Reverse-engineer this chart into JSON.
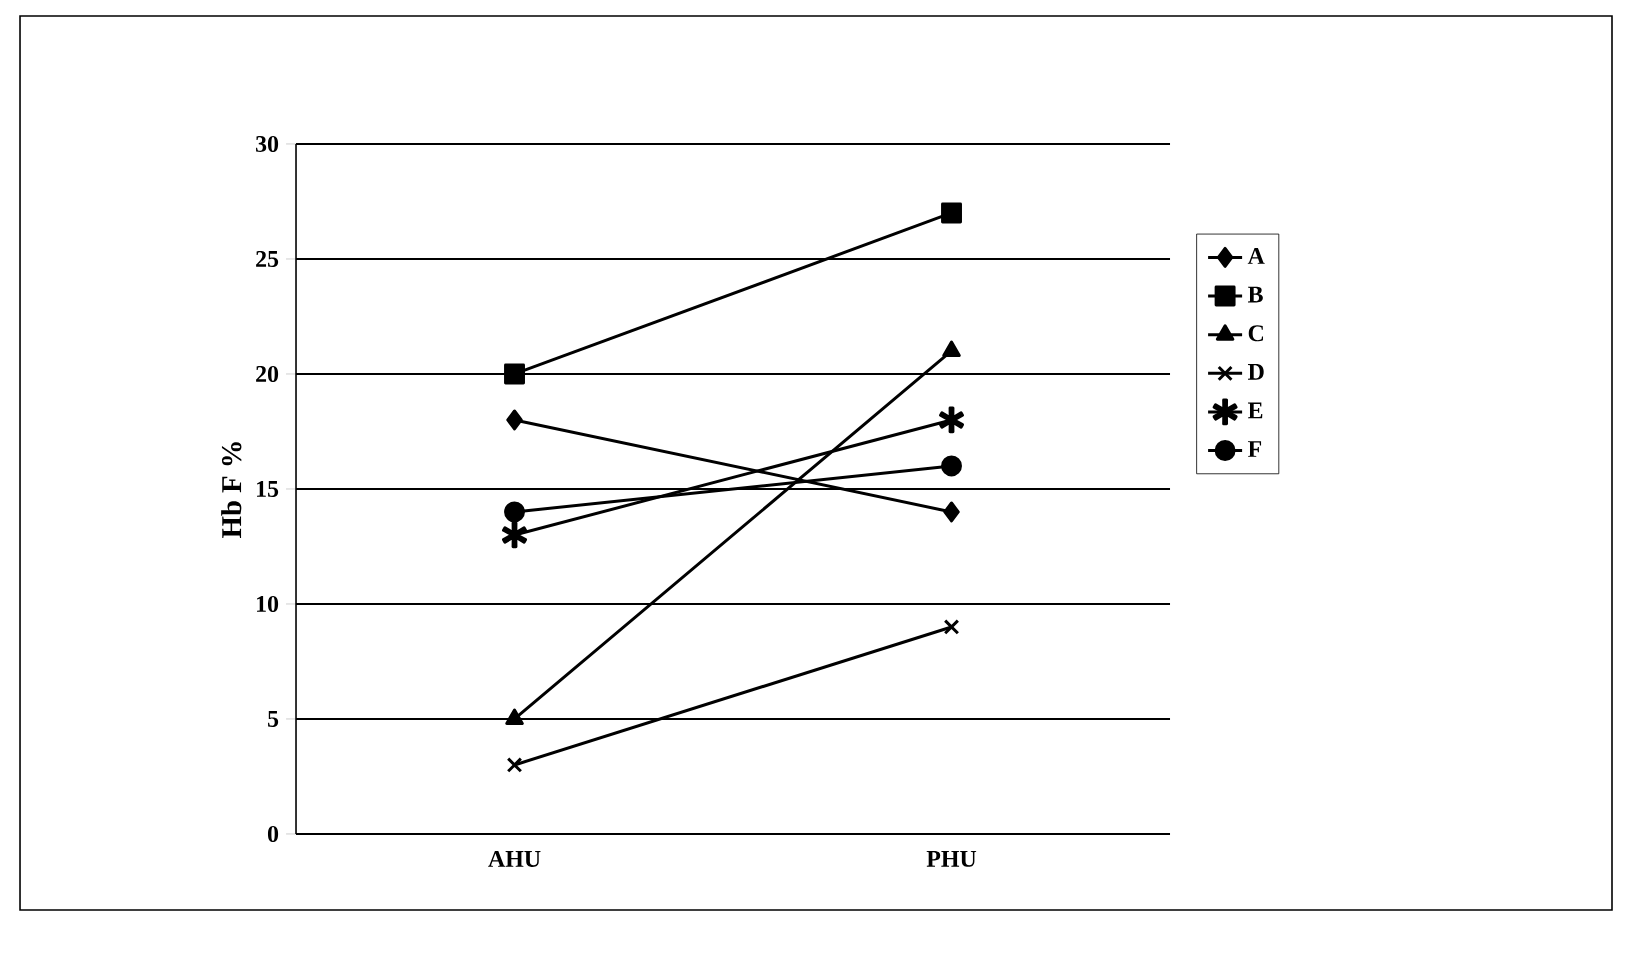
{
  "chart_data": {
    "type": "line",
    "ylabel": "Hb F %",
    "categories": [
      "AHU",
      "PHU"
    ],
    "series": [
      {
        "name": "A",
        "color": "#000000",
        "marker": "diamond",
        "values": [
          18,
          14
        ]
      },
      {
        "name": "B",
        "color": "#000000",
        "marker": "square",
        "values": [
          20,
          27
        ]
      },
      {
        "name": "C",
        "color": "#000000",
        "marker": "triangle",
        "values": [
          5,
          21
        ]
      },
      {
        "name": "D",
        "color": "#000000",
        "marker": "cross",
        "values": [
          3,
          9
        ]
      },
      {
        "name": "E",
        "color": "#000000",
        "marker": "star",
        "values": [
          13,
          18
        ]
      },
      {
        "name": "F",
        "color": "#000000",
        "marker": "circle",
        "values": [
          14,
          16
        ]
      }
    ],
    "ylim": [
      0,
      30
    ],
    "yticks": [
      0,
      5,
      10,
      15,
      20,
      25,
      30
    ],
    "grid": "y",
    "legend": "right",
    "line_style": "solid"
  }
}
